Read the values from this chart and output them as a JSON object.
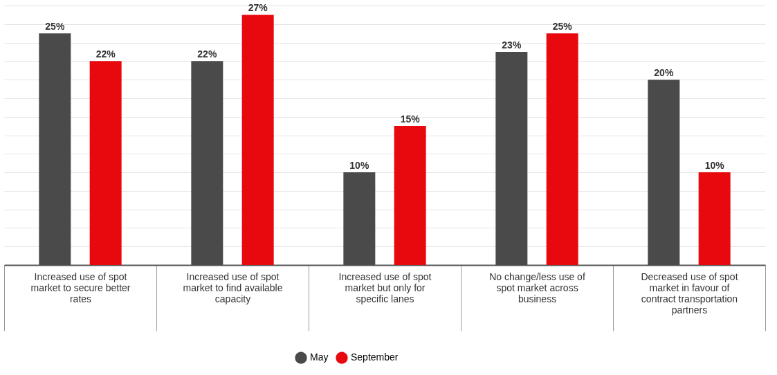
{
  "chart_data": {
    "type": "bar",
    "categories": [
      "Increased use of spot market to secure better rates",
      "Increased use of spot market to find available capacity",
      "Increased use of spot market but only for specific lanes",
      "No change/less use of spot market across business",
      "Decreased use of spot market in favour of contract transportation partners"
    ],
    "series": [
      {
        "name": "May",
        "color": "#4a4a4a",
        "values": [
          25,
          22,
          10,
          23,
          20
        ],
        "value_labels": [
          "25%",
          "22%",
          "10%",
          "23%",
          "20%"
        ]
      },
      {
        "name": "September",
        "color": "#e8090f",
        "values": [
          22,
          27,
          15,
          25,
          10
        ],
        "value_labels": [
          "22%",
          "27%",
          "15%",
          "25%",
          "10%"
        ]
      }
    ],
    "tick_labels": "x",
    "grid": "y",
    "legend": "bottom"
  }
}
